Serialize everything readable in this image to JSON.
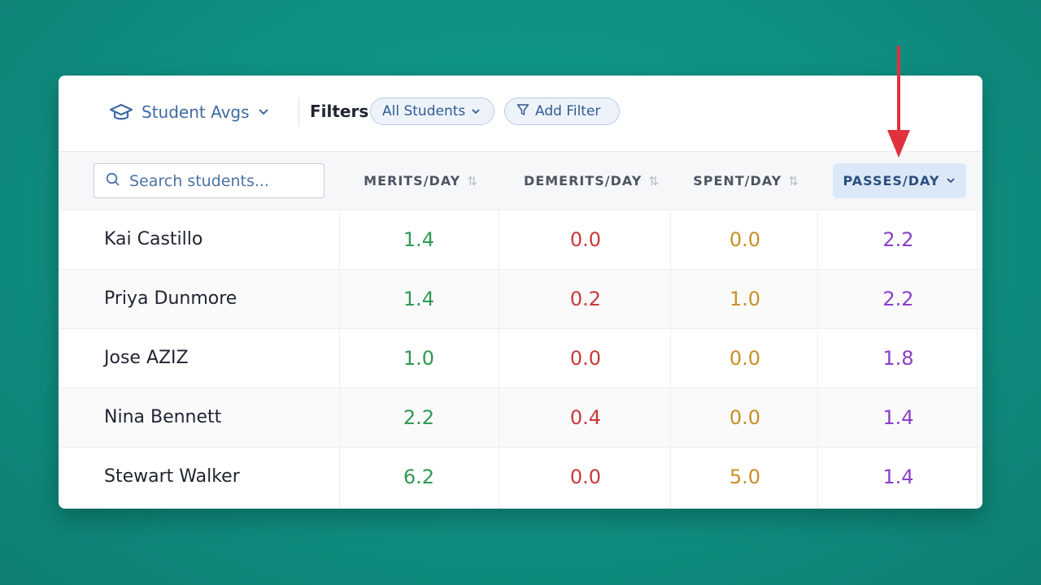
{
  "toolbar": {
    "report_label": "Student Avgs",
    "filters_label": "Filters",
    "students_filter_label": "All Students",
    "add_filter_label": "Add Filter"
  },
  "search": {
    "placeholder": "Search students..."
  },
  "columns": [
    {
      "key": "merits",
      "label": "MERITS/DAY"
    },
    {
      "key": "demerits",
      "label": "DEMERITS/DAY"
    },
    {
      "key": "spent",
      "label": "SPENT/DAY"
    },
    {
      "key": "passes",
      "label": "PASSES/DAY",
      "active": true
    }
  ],
  "rows": [
    {
      "name": "Kai Castillo",
      "merits": "1.4",
      "demerits": "0.0",
      "spent": "0.0",
      "passes": "2.2"
    },
    {
      "name": "Priya Dunmore",
      "merits": "1.4",
      "demerits": "0.2",
      "spent": "1.0",
      "passes": "2.2"
    },
    {
      "name": "Jose AZIZ",
      "merits": "1.0",
      "demerits": "0.0",
      "spent": "0.0",
      "passes": "1.8"
    },
    {
      "name": "Nina Bennett",
      "merits": "2.2",
      "demerits": "0.4",
      "spent": "0.0",
      "passes": "1.4"
    },
    {
      "name": "Stewart Walker",
      "merits": "6.2",
      "demerits": "0.0",
      "spent": "5.0",
      "passes": "1.4"
    }
  ],
  "colors": {
    "background": "#0f9484",
    "merits": "#2e9a52",
    "demerits": "#c73a3a",
    "spent": "#c98f26",
    "passes": "#8a3fc9",
    "arrow": "#e0323d"
  },
  "icons": [
    "graduation-cap-icon",
    "chevron-down-icon",
    "filter-icon",
    "search-icon",
    "sort-icon",
    "arrow-down-icon"
  ]
}
